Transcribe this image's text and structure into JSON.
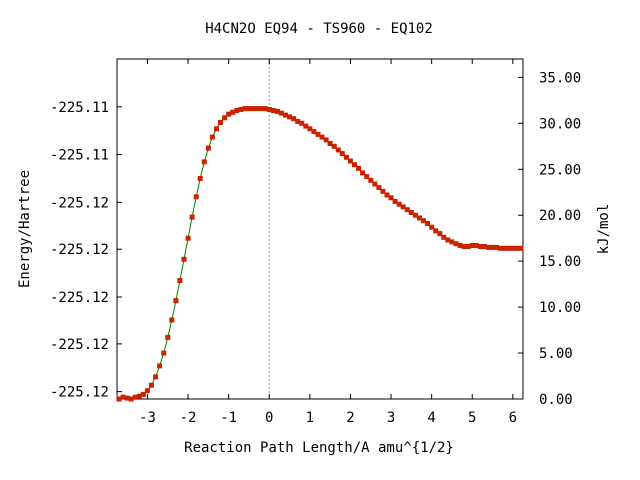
{
  "chart_data": {
    "type": "line",
    "title": "H4CN2O   EQ94 - TS960 - EQ102",
    "xlabel": "Reaction Path Length/A amu^{1/2}",
    "ylabel_left": "Energy/Hartree",
    "ylabel_right": "kJ/mol",
    "xlim": [
      -3.75,
      6.25
    ],
    "ylim_kj": [
      0.0,
      37.0
    ],
    "x_ticks": [
      -3,
      -2,
      -1,
      0,
      1,
      2,
      3,
      4,
      5,
      6
    ],
    "x_tick_labels": [
      "-3",
      "-2",
      "-1",
      "0",
      "1",
      "2",
      "3",
      "4",
      "5",
      "6"
    ],
    "left_ticks_kj": [
      0.8,
      6.0,
      11.1,
      16.3,
      21.4,
      26.6,
      31.8
    ],
    "left_tick_labels": [
      "-225.12",
      "-225.12",
      "-225.12",
      "-225.12",
      "-225.12",
      "-225.11",
      "-225.11"
    ],
    "right_ticks_kj": [
      0,
      5,
      10,
      15,
      20,
      25,
      30,
      35
    ],
    "right_tick_labels": [
      "0.00",
      "5.00",
      "10.00",
      "15.00",
      "20.00",
      "25.00",
      "30.00",
      "35.00"
    ],
    "ts_x": 0,
    "grid": false,
    "line_color": "#008000",
    "marker_color": "#cc2200",
    "series": [
      {
        "x": [
          -3.7,
          -3.6,
          -3.5,
          -3.4,
          -3.3,
          -3.2,
          -3.1,
          -3.0,
          -2.9,
          -2.8,
          -2.7,
          -2.6,
          -2.5,
          -2.4,
          -2.3,
          -2.2,
          -2.1,
          -2.0,
          -1.9,
          -1.8,
          -1.7,
          -1.6,
          -1.5,
          -1.4,
          -1.3,
          -1.2,
          -1.1,
          -1.0,
          -0.9,
          -0.8,
          -0.7,
          -0.6,
          -0.5,
          -0.4,
          -0.3,
          -0.2,
          -0.1,
          0.0,
          0.1,
          0.2,
          0.3,
          0.4,
          0.5,
          0.6,
          0.7,
          0.8,
          0.9,
          1.0,
          1.1,
          1.2,
          1.3,
          1.4,
          1.5,
          1.6,
          1.7,
          1.8,
          1.9,
          2.0,
          2.1,
          2.2,
          2.3,
          2.4,
          2.5,
          2.6,
          2.7,
          2.8,
          2.9,
          3.0,
          3.1,
          3.2,
          3.3,
          3.4,
          3.5,
          3.6,
          3.7,
          3.8,
          3.9,
          4.0,
          4.1,
          4.2,
          4.3,
          4.4,
          4.5,
          4.6,
          4.7,
          4.8,
          4.9,
          5.0,
          5.1,
          5.2,
          5.3,
          5.4,
          5.5,
          5.6,
          5.7,
          5.8,
          5.9,
          6.0,
          6.1,
          6.2
        ],
        "values": [
          0.0,
          0.2,
          0.1,
          0.0,
          0.2,
          0.3,
          0.5,
          0.9,
          1.5,
          2.4,
          3.6,
          5.0,
          6.7,
          8.6,
          10.7,
          12.9,
          15.2,
          17.5,
          19.8,
          22.0,
          24.0,
          25.8,
          27.3,
          28.5,
          29.4,
          30.1,
          30.6,
          31.0,
          31.2,
          31.4,
          31.5,
          31.6,
          31.6,
          31.6,
          31.6,
          31.6,
          31.6,
          31.5,
          31.4,
          31.3,
          31.1,
          30.9,
          30.7,
          30.5,
          30.2,
          30.0,
          29.7,
          29.4,
          29.1,
          28.8,
          28.5,
          28.2,
          27.8,
          27.5,
          27.1,
          26.7,
          26.3,
          25.9,
          25.5,
          25.1,
          24.6,
          24.2,
          23.8,
          23.4,
          23.0,
          22.6,
          22.2,
          21.9,
          21.5,
          21.2,
          20.9,
          20.6,
          20.3,
          20.0,
          19.7,
          19.4,
          19.1,
          18.7,
          18.3,
          18.0,
          17.6,
          17.3,
          17.1,
          16.9,
          16.7,
          16.6,
          16.6,
          16.7,
          16.7,
          16.6,
          16.6,
          16.5,
          16.5,
          16.5,
          16.4,
          16.4,
          16.4,
          16.4,
          16.4,
          16.4
        ]
      }
    ]
  }
}
